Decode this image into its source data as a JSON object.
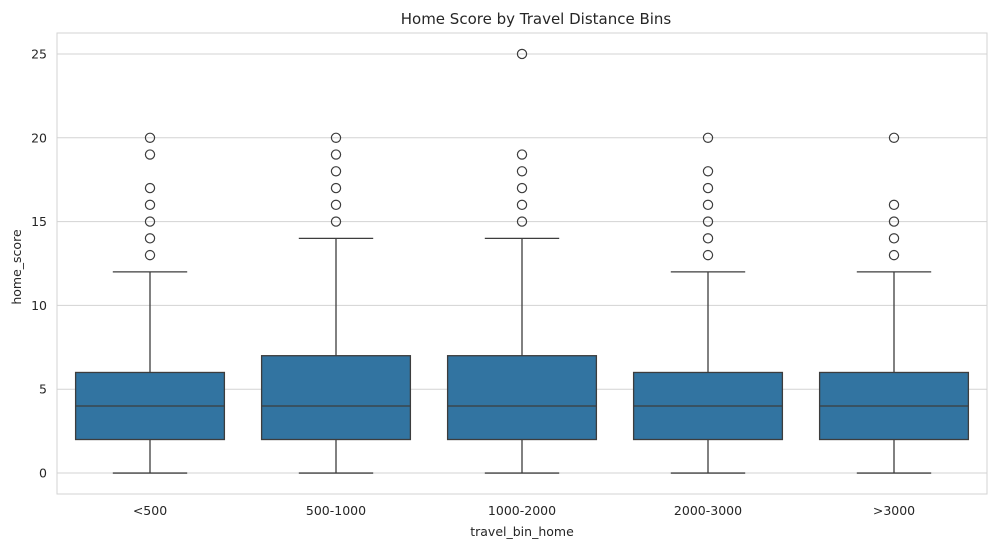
{
  "chart_data": {
    "type": "box",
    "title": "Home Score by Travel Distance Bins",
    "xlabel": "travel_bin_home",
    "ylabel": "home_score",
    "categories": [
      "<500",
      "500-1000",
      "1000-2000",
      "2000-3000",
      ">3000"
    ],
    "boxes": [
      {
        "category": "<500",
        "whisker_low": 0,
        "q1": 2,
        "median": 4,
        "q3": 6,
        "whisker_high": 12,
        "outliers": [
          13,
          14,
          15,
          16,
          17,
          19,
          20
        ]
      },
      {
        "category": "500-1000",
        "whisker_low": 0,
        "q1": 2,
        "median": 4,
        "q3": 7,
        "whisker_high": 14,
        "outliers": [
          15,
          16,
          17,
          18,
          19,
          20
        ]
      },
      {
        "category": "1000-2000",
        "whisker_low": 0,
        "q1": 2,
        "median": 4,
        "q3": 7,
        "whisker_high": 14,
        "outliers": [
          15,
          16,
          17,
          18,
          19,
          25
        ]
      },
      {
        "category": "2000-3000",
        "whisker_low": 0,
        "q1": 2,
        "median": 4,
        "q3": 6,
        "whisker_high": 12,
        "outliers": [
          13,
          14,
          15,
          16,
          17,
          18,
          20
        ]
      },
      {
        "category": ">3000",
        "whisker_low": 0,
        "q1": 2,
        "median": 4,
        "q3": 6,
        "whisker_high": 12,
        "outliers": [
          13,
          14,
          15,
          16,
          20
        ]
      }
    ],
    "yticks": [
      0,
      5,
      10,
      15,
      20,
      25
    ],
    "ylim": [
      -1.25,
      26.25
    ],
    "grid": true,
    "legend": "none",
    "colors": {
      "box_fill": "#3274a1",
      "line": "#3d3d3d",
      "grid": "#d3d3d3"
    }
  }
}
